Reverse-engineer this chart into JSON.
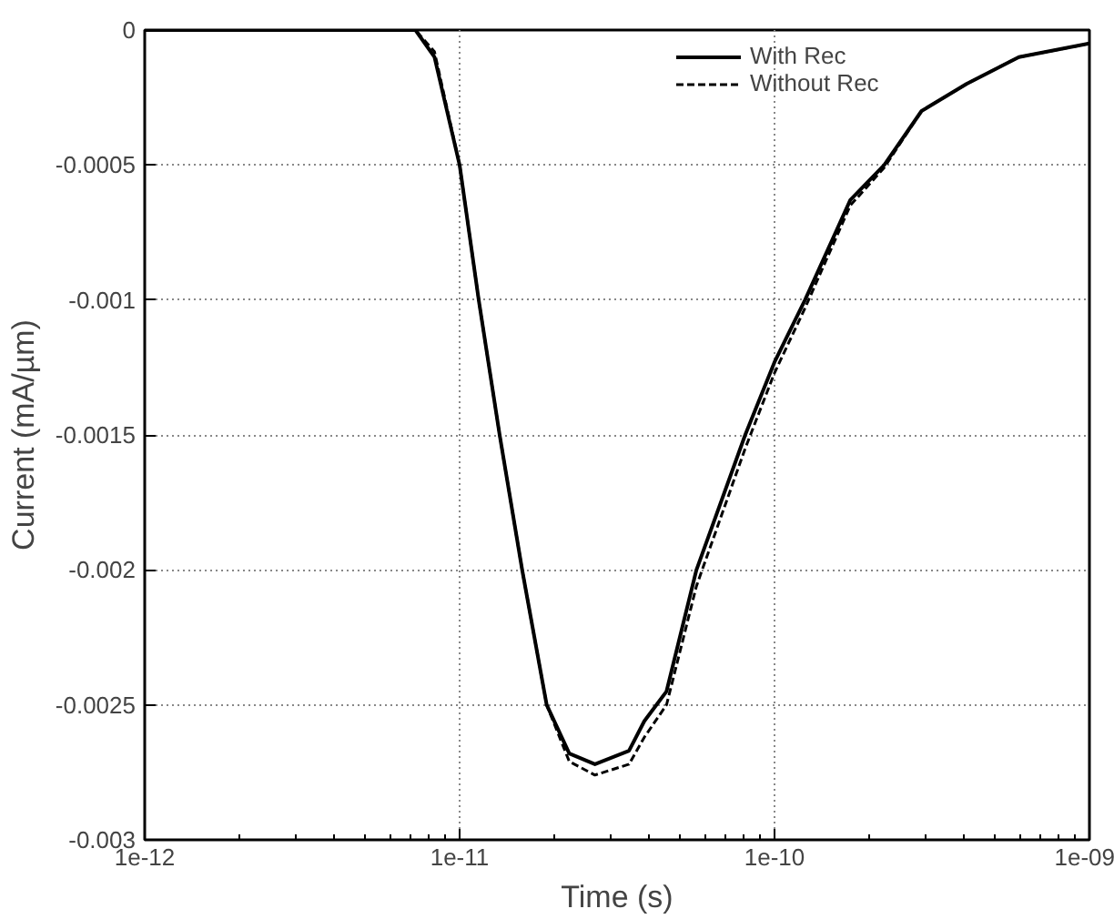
{
  "chart_data": {
    "type": "line",
    "xlabel": "Time (s)",
    "ylabel": "Current (mA/µm)",
    "x": [
      1e-12,
      7.24e-12,
      8.32e-12,
      1e-11,
      1.15e-11,
      1.34e-11,
      1.58e-11,
      1.89e-11,
      2.23e-11,
      2.69e-11,
      3.45e-11,
      3.86e-11,
      4.54e-11,
      5.65e-11,
      8.07e-11,
      1e-10,
      1.25e-10,
      1.74e-10,
      2.23e-10,
      2.93e-10,
      4.07e-10,
      5.97e-10,
      1e-09
    ],
    "series": [
      {
        "name": "With Rec",
        "color": "#000000",
        "line_style": "solid",
        "values": [
          0,
          0,
          -0.0001,
          -0.0005,
          -0.001,
          -0.0015,
          -0.002,
          -0.0025,
          -0.00268,
          -0.00272,
          -0.00267,
          -0.00256,
          -0.00245,
          -0.002,
          -0.0015,
          -0.00123,
          -0.001,
          -0.00063,
          -0.0005,
          -0.0003,
          -0.0002,
          -0.0001,
          -5e-05
        ]
      },
      {
        "name": "Without Rec",
        "color": "#000000",
        "line_style": "dashed",
        "values": [
          0,
          0,
          -8e-05,
          -0.0005,
          -0.001,
          -0.0015,
          -0.002,
          -0.0025,
          -0.00271,
          -0.00276,
          -0.00272,
          -0.00262,
          -0.0025,
          -0.00206,
          -0.00155,
          -0.00127,
          -0.00103,
          -0.00065,
          -0.00051,
          -0.0003,
          -0.0002,
          -0.0001,
          -5e-05
        ]
      }
    ],
    "log": "x",
    "xlim": [
      1e-12,
      1e-09
    ],
    "xticks": [
      1e-12,
      1e-11,
      1e-10,
      1e-09
    ],
    "ylim": [
      -0.003,
      0
    ],
    "yticks": [
      0,
      -0.0005,
      -0.001,
      -0.0015,
      -0.002,
      -0.0025,
      -0.003
    ],
    "grid": true,
    "legend": "top right",
    "marker": "none"
  }
}
